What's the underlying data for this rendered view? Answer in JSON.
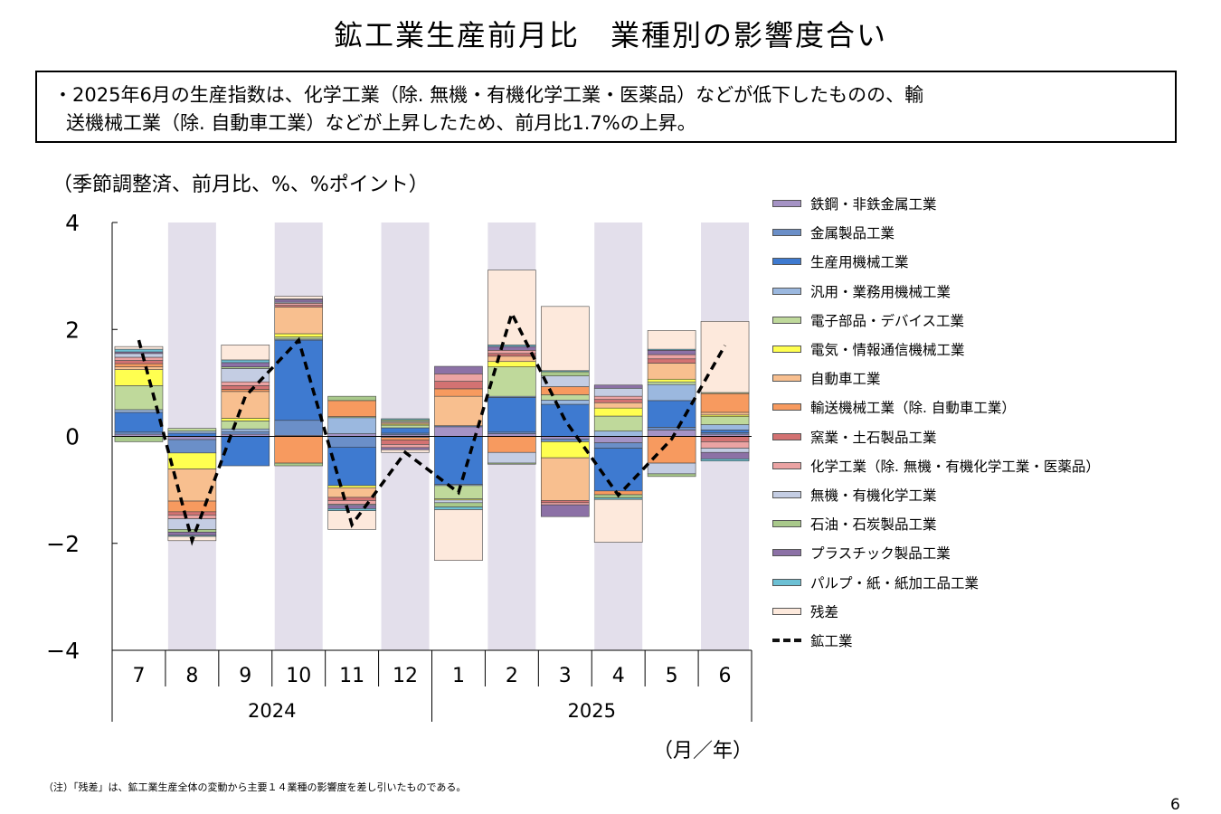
{
  "title": "鉱工業生産前月比　業種別の影響度合い",
  "summary": {
    "line1": "・2025年6月の生産指数は、化学工業（除. 無機・有機化学工業・医薬品）などが低下したものの、輸",
    "line2": "送機械工業（除. 自動車工業）などが上昇したため、前月比1.7%の上昇。"
  },
  "unit_label": "（季節調整済、前月比、%、%ポイント）",
  "x_unit_label": "（月／年）",
  "note": "（注）「残差」は、鉱工業生産全体の変動から主要１４業種の影響度を差し引いたものである。",
  "page_number": "6",
  "chart_data": {
    "type": "bar",
    "stacked": true,
    "categories": [
      "7",
      "8",
      "9",
      "10",
      "11",
      "12",
      "1",
      "2",
      "3",
      "4",
      "5",
      "6"
    ],
    "year_groups": [
      {
        "label": "2024",
        "span": 6
      },
      {
        "label": "2025",
        "span": 6
      }
    ],
    "ylim": [
      -4,
      4
    ],
    "yticks": [
      "4",
      "2",
      "0",
      "−2",
      "−4"
    ],
    "ytick_values": [
      4,
      2,
      0,
      -2,
      -4
    ],
    "shaded_categories": [
      "8",
      "10",
      "12",
      "2",
      "4",
      "6"
    ],
    "shade_color": "#e3dfeb",
    "series": [
      {
        "name": "鉄鋼・非鉄金属工業",
        "color": "#a593c5",
        "values": [
          0.04,
          -0.06,
          0.04,
          0.02,
          0.05,
          0.03,
          0.18,
          0.05,
          -0.05,
          -0.12,
          0.12,
          0.04
        ]
      },
      {
        "name": "金属製品工業",
        "color": "#6b8fc8",
        "values": [
          0.04,
          -0.25,
          0.05,
          0.28,
          -0.2,
          0.03,
          0.02,
          0.03,
          -0.05,
          -0.1,
          0.05,
          0.03
        ]
      },
      {
        "name": "生産用機械工業",
        "color": "#3e7ad0",
        "values": [
          0.37,
          0.06,
          -0.55,
          1.5,
          -0.72,
          0.1,
          -0.9,
          0.65,
          0.6,
          -0.8,
          0.5,
          0.05
        ]
      },
      {
        "name": "汎用・業務用機械工業",
        "color": "#9bb8df",
        "values": [
          0.05,
          0.04,
          0.05,
          0.02,
          0.3,
          -0.02,
          -0.02,
          0.02,
          0.08,
          0.1,
          0.3,
          0.1
        ]
      },
      {
        "name": "電子部品・デバイス工業",
        "color": "#bfd99b",
        "values": [
          0.45,
          0.05,
          0.15,
          0.04,
          0.02,
          0.05,
          -0.25,
          0.55,
          0.1,
          0.28,
          0.05,
          0.15
        ]
      },
      {
        "name": "電気・情報通信機械工業",
        "color": "#ffff50",
        "values": [
          0.3,
          -0.3,
          0.05,
          0.06,
          -0.04,
          0.02,
          -0.02,
          0.1,
          -0.3,
          0.15,
          0.05,
          0.03
        ]
      },
      {
        "name": "自動車工業",
        "color": "#f8bf8f",
        "values": [
          0.05,
          -0.6,
          0.5,
          0.5,
          -0.18,
          0.03,
          0.55,
          0.1,
          -0.8,
          0.1,
          0.3,
          0.05
        ]
      },
      {
        "name": "輸送機械工業（除. 自動車工業）",
        "color": "#f79a5f",
        "values": [
          0.06,
          -0.2,
          0.04,
          -0.5,
          0.3,
          -0.05,
          0.14,
          -0.3,
          0.15,
          -0.07,
          -0.5,
          0.35
        ]
      },
      {
        "name": "窯業・土石製品工業",
        "color": "#d37272",
        "values": [
          0.06,
          -0.06,
          0.07,
          0.03,
          -0.06,
          -0.08,
          0.14,
          0.05,
          -0.04,
          0.06,
          0.08,
          -0.1
        ]
      },
      {
        "name": "化学工業（除. 無機・有機化学工業・医薬品）",
        "color": "#eba3a3",
        "values": [
          0.06,
          -0.07,
          0.07,
          0.04,
          -0.07,
          -0.06,
          0.14,
          0.06,
          -0.04,
          0.06,
          0.08,
          -0.12
        ]
      },
      {
        "name": "無機・有機化学工業",
        "color": "#c4cde3",
        "values": [
          0.07,
          -0.2,
          0.25,
          0.02,
          -0.02,
          0.02,
          -0.05,
          -0.2,
          0.2,
          0.15,
          -0.2,
          -0.08
        ]
      },
      {
        "name": "石油・石炭製品工業",
        "color": "#a9c98b",
        "values": [
          -0.1,
          -0.05,
          0.03,
          -0.05,
          0.08,
          0.03,
          -0.08,
          -0.02,
          0.08,
          -0.06,
          -0.05,
          0.02
        ]
      },
      {
        "name": "プラスチック製品工業",
        "color": "#8c71a6",
        "values": [
          0.03,
          -0.06,
          0.08,
          0.05,
          -0.06,
          -0.04,
          0.14,
          0.07,
          -0.22,
          0.06,
          0.08,
          -0.12
        ]
      },
      {
        "name": "パルプ・紙・紙加工品工業",
        "color": "#6cc0d4",
        "values": [
          0.05,
          -0.02,
          0.05,
          0.01,
          -0.04,
          0.02,
          -0.05,
          0.03,
          0.02,
          -0.03,
          0.02,
          -0.04
        ]
      },
      {
        "name": "残差",
        "color": "#fde9dc",
        "values": [
          0.05,
          -0.08,
          0.28,
          0.05,
          -0.35,
          -0.05,
          -0.95,
          1.4,
          1.2,
          -0.8,
          0.35,
          1.33
        ]
      }
    ],
    "line_series": {
      "name": "鉱工業",
      "color": "#000000",
      "values": [
        1.8,
        -1.95,
        0.75,
        1.8,
        -1.65,
        -0.3,
        -1.05,
        2.3,
        0.3,
        -1.1,
        -0.05,
        1.7
      ]
    }
  }
}
